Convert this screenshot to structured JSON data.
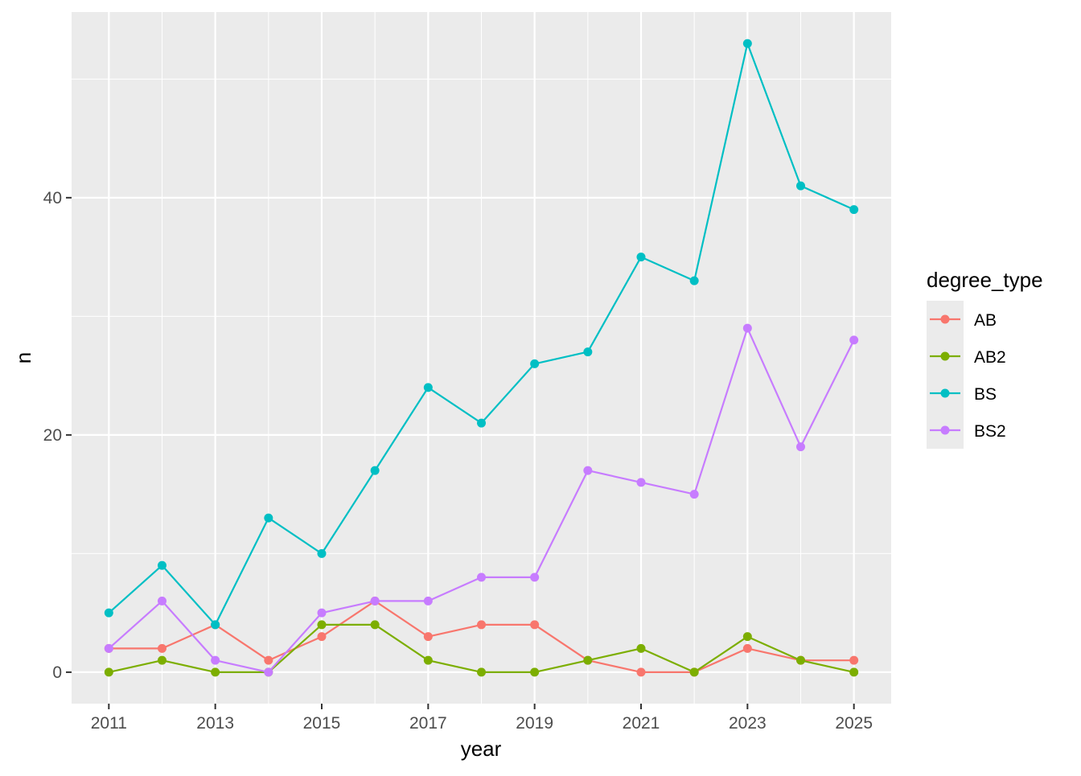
{
  "chart_data": {
    "type": "line",
    "x": [
      2011,
      2012,
      2013,
      2014,
      2015,
      2016,
      2017,
      2018,
      2019,
      2020,
      2021,
      2022,
      2023,
      2024,
      2025
    ],
    "series": [
      {
        "name": "AB",
        "color": "#F8766D",
        "values": [
          2,
          2,
          4,
          1,
          3,
          6,
          3,
          4,
          4,
          1,
          0,
          0,
          2,
          1,
          1
        ]
      },
      {
        "name": "AB2",
        "color": "#7CAE00",
        "values": [
          0,
          1,
          0,
          0,
          4,
          4,
          1,
          0,
          0,
          1,
          2,
          0,
          3,
          1,
          0
        ]
      },
      {
        "name": "BS",
        "color": "#00BFC4",
        "values": [
          5,
          9,
          4,
          13,
          10,
          17,
          24,
          21,
          26,
          27,
          35,
          33,
          53,
          41,
          39
        ]
      },
      {
        "name": "BS2",
        "color": "#C77CFF",
        "values": [
          2,
          6,
          1,
          0,
          5,
          6,
          6,
          8,
          8,
          17,
          16,
          15,
          29,
          19,
          28
        ]
      }
    ],
    "xlabel": "year",
    "ylabel": "n",
    "xticks": [
      "2011",
      "2013",
      "2015",
      "2017",
      "2019",
      "2021",
      "2023",
      "2025"
    ],
    "yticks": [
      "0",
      "20",
      "40"
    ],
    "xlim": [
      2010.3,
      2025.7
    ],
    "ylim": [
      -2.65,
      55.65
    ],
    "legend_title": "degree_type",
    "legend_position": "right",
    "grid": true,
    "panel_background": "#EBEBEB"
  }
}
